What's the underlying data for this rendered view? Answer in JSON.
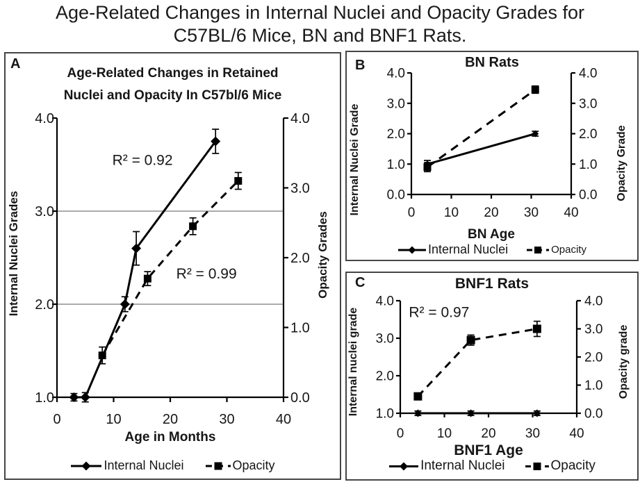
{
  "header": {
    "title_line1": "Age-Related Changes in Internal Nuclei and Opacity Grades for",
    "title_line2": "C57BL/6 Mice, BN and BNF1 Rats."
  },
  "colors": {
    "line": "#000000",
    "grid": "#8f8f8f",
    "border": "#454545",
    "text": "#161616",
    "background": "#ffffff"
  },
  "panels": {
    "a": {
      "letter": "A"
    },
    "b": {
      "letter": "B"
    },
    "c": {
      "letter": "C"
    }
  },
  "chart_data": [
    {
      "id": "a",
      "type": "line",
      "title_lines": [
        "Age-Related Changes in Retained",
        "Nuclei and Opacity In C57bl/6 Mice"
      ],
      "xlabel": "Age in Months",
      "xlim": [
        0,
        40
      ],
      "x_tick_values": [
        0,
        10,
        20,
        30,
        40
      ],
      "x_tick_labels": [
        "0",
        "10",
        "20",
        "30",
        "40"
      ],
      "left_axis": {
        "label": "Internal Nuclei Grades",
        "lim": [
          1.0,
          4.0
        ],
        "tick_values": [
          1,
          2,
          3,
          4
        ],
        "tick_labels": [
          "1.0",
          "2.0",
          "3.0",
          "4.0"
        ]
      },
      "right_axis": {
        "label": "Opacity Grades",
        "lim": [
          0.0,
          4.0
        ],
        "tick_values": [
          0,
          1,
          2,
          3,
          4
        ],
        "tick_labels": [
          "0.0",
          "1.0",
          "2.0",
          "3.0",
          "4.0"
        ]
      },
      "gridlines_left": [
        2,
        3
      ],
      "grid": true,
      "legend_position": "bottom",
      "annotations": [
        {
          "label": "R² = 0.92",
          "x": 15.1,
          "y": 3.55,
          "axis": "left"
        },
        {
          "label": "R² = 0.99",
          "x": 26.4,
          "y": 2.33,
          "axis": "left"
        }
      ],
      "series": [
        {
          "name": "Internal Nuclei",
          "axis": "left",
          "line": "solid",
          "marker": "diamond",
          "x": [
            3,
            5,
            12,
            14,
            28
          ],
          "y": [
            1.0,
            1.0,
            2.0,
            2.6,
            3.75
          ],
          "err": [
            0.04,
            0.05,
            0.08,
            0.18,
            0.13
          ]
        },
        {
          "name": "Opacity",
          "axis": "right",
          "line": "dashed",
          "marker": "square",
          "x": [
            8,
            16,
            24,
            32
          ],
          "y": [
            0.6,
            1.7,
            2.45,
            3.1
          ],
          "err": [
            0.12,
            0.1,
            0.12,
            0.12
          ]
        }
      ]
    },
    {
      "id": "b",
      "type": "line",
      "title_lines": [
        "BN Rats"
      ],
      "xlabel": "BN Age",
      "xlim": [
        0,
        40
      ],
      "x_tick_values": [
        0,
        10,
        20,
        30,
        40
      ],
      "x_tick_labels": [
        "0",
        "10",
        "20",
        "30",
        "40"
      ],
      "left_axis": {
        "label": "Internal Nuclei Grade",
        "lim": [
          0.0,
          4.0
        ],
        "tick_values": [
          0,
          1,
          2,
          3,
          4
        ],
        "tick_labels": [
          "0.0",
          "1.0",
          "2.0",
          "3.0",
          "4.0"
        ]
      },
      "right_axis": {
        "label": "Opacity Grade",
        "lim": [
          0.0,
          4.0
        ],
        "tick_values": [
          0,
          1,
          2,
          3,
          4
        ],
        "tick_labels": [
          "0.0",
          "1.0",
          "2.0",
          "3.0",
          "4.0"
        ]
      },
      "gridlines_left": [],
      "grid": false,
      "legend_position": "bottom",
      "annotations": [],
      "series": [
        {
          "name": "Internal Nuclei",
          "axis": "left",
          "line": "solid",
          "marker": "diamond",
          "x": [
            4,
            31
          ],
          "y": [
            1.0,
            2.0
          ],
          "err": [
            0.12,
            0.08
          ]
        },
        {
          "name": "Opacity",
          "axis": "right",
          "line": "dashed",
          "marker": "square",
          "x": [
            4,
            31
          ],
          "y": [
            0.9,
            3.45
          ],
          "err": [
            0.15,
            0.12
          ]
        }
      ]
    },
    {
      "id": "c",
      "type": "line",
      "title_lines": [
        "BNF1 Rats"
      ],
      "xlabel": "BNF1 Age",
      "xlim": [
        0,
        40
      ],
      "x_tick_values": [
        0,
        10,
        20,
        30,
        40
      ],
      "x_tick_labels": [
        "0",
        "10",
        "20",
        "30",
        "40"
      ],
      "left_axis": {
        "label": "Internal nuclei grade",
        "lim": [
          1.0,
          4.0
        ],
        "tick_values": [
          1,
          2,
          3,
          4
        ],
        "tick_labels": [
          "1.0",
          "2.0",
          "3.0",
          "4.0"
        ]
      },
      "right_axis": {
        "label": "Opacity grade",
        "lim": [
          0.0,
          4.0
        ],
        "tick_values": [
          0,
          1,
          2,
          3,
          4
        ],
        "tick_labels": [
          "0.0",
          "1.0",
          "2.0",
          "3.0",
          "4.0"
        ]
      },
      "gridlines_left": [],
      "grid": false,
      "legend_position": "bottom",
      "annotations": [
        {
          "label": "R² = 0.97",
          "x": 8.8,
          "y": 3.7,
          "axis": "left"
        }
      ],
      "series": [
        {
          "name": "Internal Nuclei",
          "axis": "left",
          "line": "solid",
          "marker": "diamond",
          "x": [
            4,
            16,
            31
          ],
          "y": [
            1.0,
            1.0,
            1.0
          ],
          "err": [
            0.06,
            0.06,
            0.06
          ]
        },
        {
          "name": "Opacity",
          "axis": "right",
          "line": "dashed",
          "marker": "square",
          "x": [
            4,
            16,
            31
          ],
          "y": [
            0.6,
            2.6,
            3.0
          ],
          "err": [
            0.1,
            0.18,
            0.27
          ]
        }
      ]
    }
  ]
}
